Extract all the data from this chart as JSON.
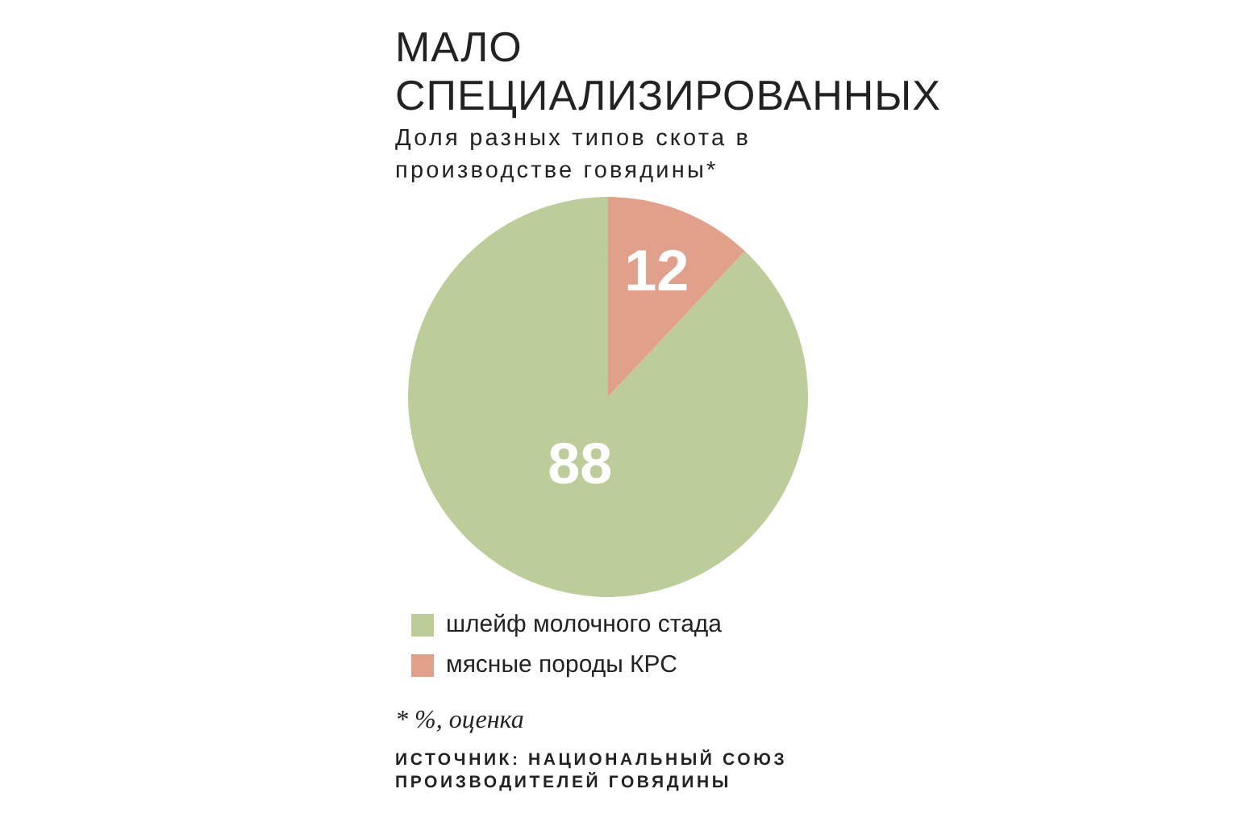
{
  "chart_data": {
    "type": "pie",
    "title": "МАЛО СПЕЦИАЛИЗИРОВАННЫХ",
    "subtitle": "Доля разных типов скота в производстве говядины*",
    "categories": [
      "шлейф молочного стада",
      "мясные породы КРС"
    ],
    "values": [
      88,
      12
    ],
    "colors": [
      "#bccd9a",
      "#e0a08a"
    ],
    "data_labels": true,
    "legend": "bottom",
    "annotations": [
      "* %, оценка",
      "ИСТОЧНИК: НАЦИОНАЛЬНЫЙ СОЮЗ ПРОИЗВОДИТЕЛЕЙ ГОВЯДИНЫ"
    ]
  }
}
